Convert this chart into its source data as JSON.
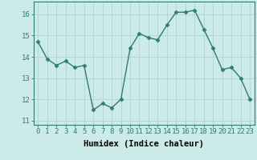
{
  "x": [
    0,
    1,
    2,
    3,
    4,
    5,
    6,
    7,
    8,
    9,
    10,
    11,
    12,
    13,
    14,
    15,
    16,
    17,
    18,
    19,
    20,
    21,
    22,
    23
  ],
  "y": [
    14.7,
    13.9,
    13.6,
    13.8,
    13.5,
    13.6,
    11.5,
    11.8,
    11.6,
    12.0,
    14.4,
    15.1,
    14.9,
    14.8,
    15.5,
    16.1,
    16.1,
    16.2,
    15.3,
    14.4,
    13.4,
    13.5,
    13.0,
    12.0
  ],
  "line_color": "#2e7d6e",
  "marker": "D",
  "marker_size": 2.5,
  "bg_color": "#cceae8",
  "grid_color": "#b0d4d0",
  "xlabel": "Humidex (Indice chaleur)",
  "ylim": [
    10.8,
    16.6
  ],
  "xlim": [
    -0.5,
    23.5
  ],
  "yticks": [
    11,
    12,
    13,
    14,
    15,
    16
  ],
  "xticks": [
    0,
    1,
    2,
    3,
    4,
    5,
    6,
    7,
    8,
    9,
    10,
    11,
    12,
    13,
    14,
    15,
    16,
    17,
    18,
    19,
    20,
    21,
    22,
    23
  ],
  "xlabel_fontsize": 7.5,
  "tick_fontsize": 6.5,
  "line_width": 1.0
}
